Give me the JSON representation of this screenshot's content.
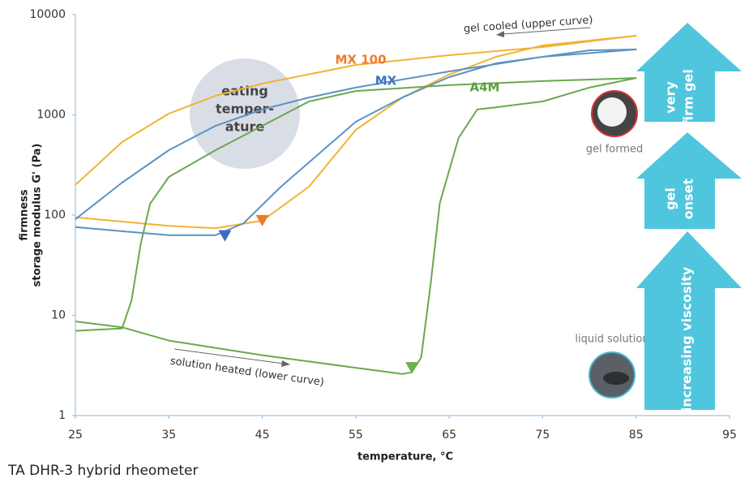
{
  "chart_data": {
    "type": "line",
    "xlabel": "temperature, °C",
    "ylabel": [
      "firmness",
      "storage modulus G' (Pa)"
    ],
    "footer": "TA DHR-3 hybrid rheometer",
    "log_scale": true,
    "xlim": [
      25,
      95
    ],
    "xticks": [
      25,
      35,
      45,
      55,
      65,
      75,
      85,
      95
    ],
    "ylim": [
      1,
      10000
    ],
    "yticks": [
      1,
      10,
      100,
      1000,
      10000
    ],
    "series": [
      {
        "name": "MX 100",
        "color": "#f2b233",
        "label_color": "#f07a2a",
        "x": [
          25,
          35,
          40,
          45,
          50,
          55,
          60,
          65,
          70,
          75,
          85,
          75,
          65,
          55,
          45,
          40,
          35,
          30,
          25
        ],
        "values": [
          95,
          78,
          74,
          88,
          192,
          708,
          1490,
          2520,
          3790,
          4920,
          6160,
          4740,
          3940,
          3150,
          2050,
          1550,
          1030,
          535,
          200
        ],
        "marker": {
          "x": 45,
          "y": 88,
          "color": "#f07a2a"
        }
      },
      {
        "name": "MX",
        "color": "#5b93c4",
        "label_color": "#3f73c2",
        "x": [
          25,
          30,
          35,
          40,
          43,
          47,
          50,
          55,
          60,
          65,
          70,
          75,
          85,
          80,
          75,
          65,
          55,
          50,
          45,
          40,
          35,
          30,
          25
        ],
        "values": [
          76,
          69,
          63,
          63,
          83,
          192,
          336,
          853,
          1490,
          2380,
          3270,
          3790,
          4490,
          4400,
          3790,
          2710,
          1870,
          1490,
          1130,
          778,
          444,
          211,
          91
        ],
        "marker": {
          "x": 41,
          "y": 62,
          "color": "#3a6bc4"
        }
      },
      {
        "name": "A4M",
        "color": "#6aa84f",
        "label_color": "#5aa03c",
        "x": [
          25,
          30,
          35,
          45,
          55,
          60,
          61,
          62,
          63,
          64,
          66,
          68,
          70,
          75,
          80,
          85,
          75,
          65,
          55,
          50,
          45,
          40,
          35,
          33,
          32,
          31,
          30,
          25
        ],
        "values": [
          8.7,
          7.6,
          5.6,
          4.0,
          3.0,
          2.6,
          2.7,
          3.8,
          20,
          132,
          588,
          1130,
          1190,
          1360,
          1870,
          2330,
          2170,
          1980,
          1730,
          1360,
          778,
          444,
          240,
          130,
          52,
          14,
          7.4,
          7.0
        ],
        "marker": {
          "x": 61,
          "y": 3,
          "color": "#6ab04c"
        }
      }
    ],
    "annotations": {
      "cooled": "gel cooled (upper curve)",
      "heated": "solution heated (lower curve)",
      "eating": [
        "eating",
        "temper-",
        "ature"
      ],
      "gel_formed": "gel formed",
      "liquid": "liquid solution",
      "arrows": [
        [
          "very",
          "firm gel"
        ],
        [
          "gel",
          "onset"
        ],
        [
          "increasing viscosity"
        ]
      ]
    }
  }
}
